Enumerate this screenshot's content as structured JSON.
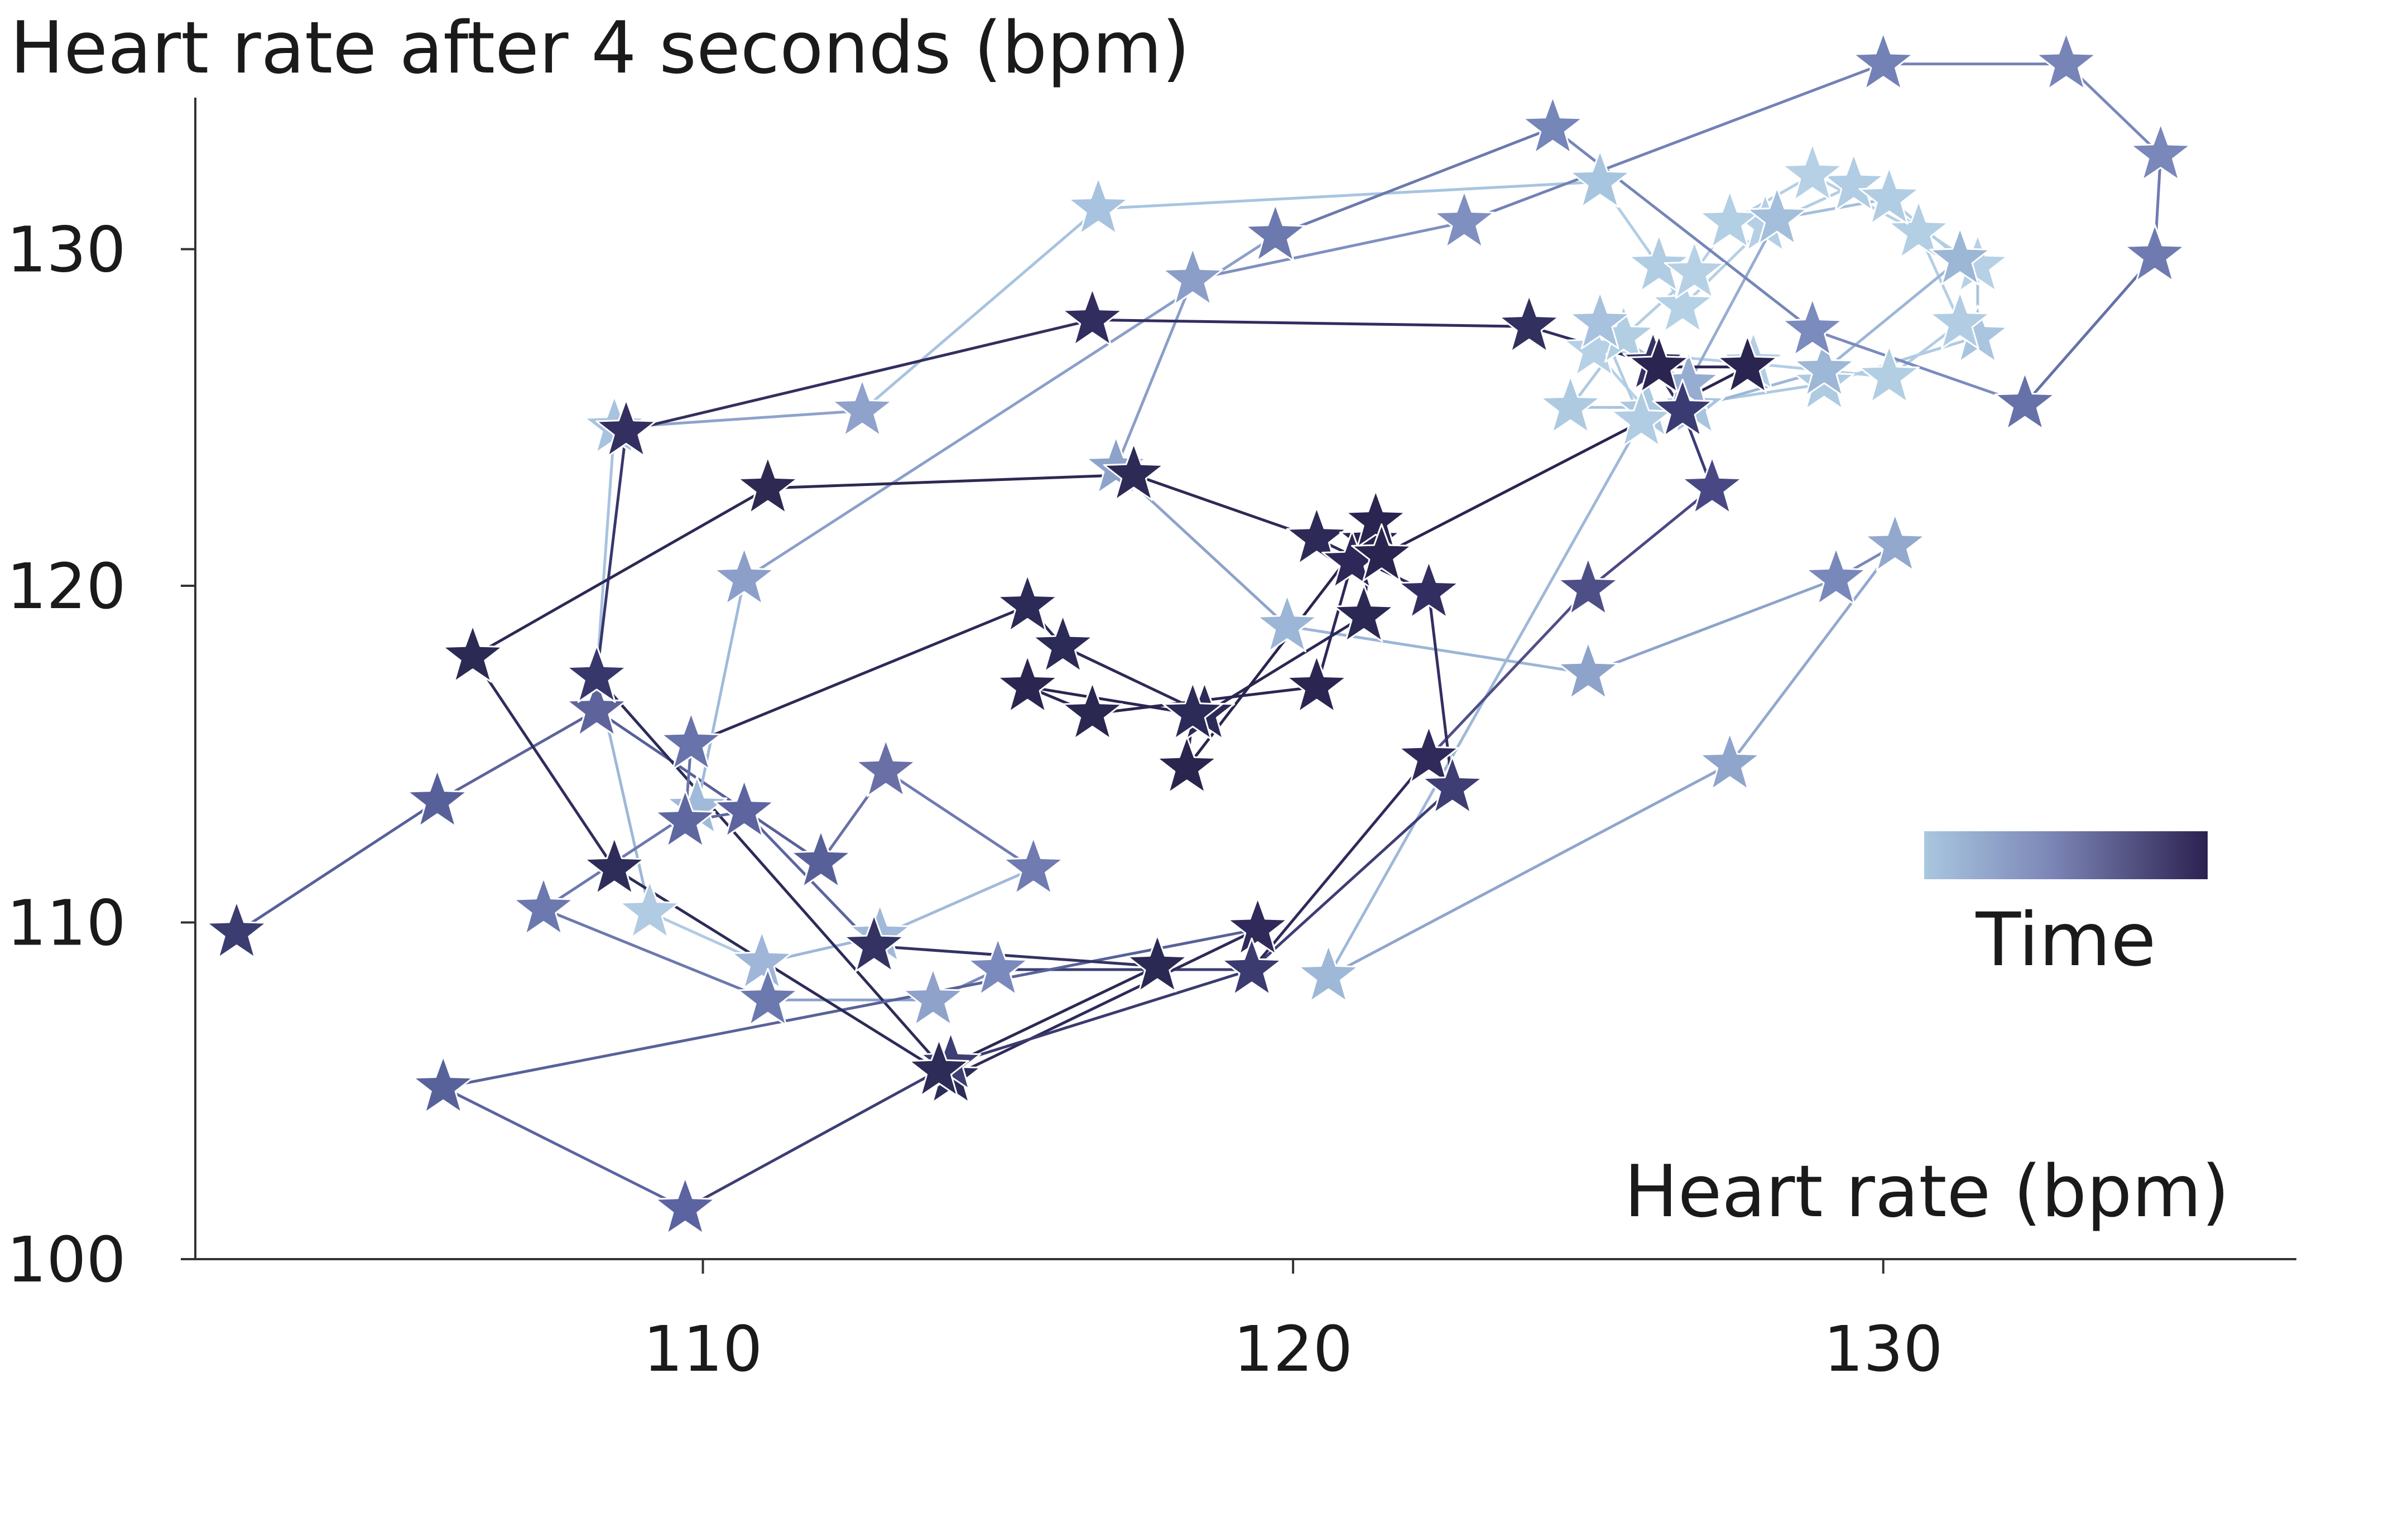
{
  "chart_data": {
    "type": "scatter",
    "title": "Heart rate after 4 seconds (bpm)",
    "xlabel": "Heart rate (bpm)",
    "ylabel": "Heart rate after 4 seconds (bpm)",
    "xlim": [
      101.4,
      137.0
    ],
    "ylim": [
      100,
      134.5
    ],
    "xticks": [
      "110",
      "120",
      "130"
    ],
    "xtick_values": [
      110,
      120,
      130
    ],
    "yticks": [
      "100",
      "110",
      "120",
      "130"
    ],
    "ytick_values": [
      100,
      110,
      120,
      130
    ],
    "marker": "star",
    "connected": true,
    "color_encoding": "time",
    "colormap": [
      "#a9c7df",
      "#8ea3cb",
      "#6f78ad",
      "#4f4f88",
      "#2c2150"
    ],
    "legend": {
      "label": "Time",
      "placement": "right-middle"
    },
    "points": [
      [
        102.1,
        109.7
      ],
      [
        105.5,
        113.6
      ],
      [
        108.2,
        116.3
      ],
      [
        112.0,
        111.8
      ],
      [
        113.1,
        114.5
      ],
      [
        115.6,
        111.6
      ],
      [
        113.0,
        109.6
      ],
      [
        111.0,
        108.8
      ],
      [
        109.1,
        110.3
      ],
      [
        108.2,
        117.3
      ],
      [
        108.5,
        124.7
      ],
      [
        112.7,
        125.2
      ],
      [
        116.7,
        131.2
      ],
      [
        125.2,
        132.0
      ],
      [
        126.2,
        129.5
      ],
      [
        126.6,
        128.3
      ],
      [
        128.0,
        130.7
      ],
      [
        129.5,
        131.9
      ],
      [
        131.6,
        129.5
      ],
      [
        131.6,
        127.4
      ],
      [
        129.0,
        126.0
      ],
      [
        126.0,
        125.2
      ],
      [
        125.1,
        127.0
      ],
      [
        127.8,
        126.6
      ],
      [
        130.1,
        126.2
      ],
      [
        131.3,
        127.8
      ],
      [
        130.6,
        130.5
      ],
      [
        128.8,
        132.2
      ],
      [
        127.4,
        130.8
      ],
      [
        126.8,
        129.3
      ],
      [
        125.6,
        127.4
      ],
      [
        124.7,
        125.3
      ],
      [
        126.8,
        125.3
      ],
      [
        129.0,
        126.4
      ],
      [
        131.3,
        129.7
      ],
      [
        130.1,
        131.5
      ],
      [
        128.2,
        130.9
      ],
      [
        126.7,
        126.0
      ],
      [
        125.2,
        127.8
      ],
      [
        125.9,
        124.9
      ],
      [
        120.6,
        108.4
      ],
      [
        127.4,
        114.7
      ],
      [
        130.2,
        121.2
      ],
      [
        129.2,
        120.2
      ],
      [
        125.0,
        117.4
      ],
      [
        119.9,
        118.8
      ],
      [
        117.0,
        123.5
      ],
      [
        118.3,
        129.1
      ],
      [
        122.9,
        130.8
      ],
      [
        130.0,
        135.5
      ],
      [
        133.1,
        135.5
      ],
      [
        134.7,
        132.8
      ],
      [
        134.6,
        129.8
      ],
      [
        132.4,
        125.4
      ],
      [
        128.8,
        127.6
      ],
      [
        124.4,
        133.6
      ],
      [
        119.7,
        130.4
      ],
      [
        110.7,
        120.2
      ],
      [
        109.9,
        113.4
      ],
      [
        107.3,
        110.4
      ],
      [
        111.1,
        107.7
      ],
      [
        113.9,
        107.7
      ],
      [
        115.0,
        108.6
      ],
      [
        119.3,
        108.6
      ],
      [
        122.3,
        114.9
      ],
      [
        125.0,
        119.9
      ],
      [
        127.1,
        122.9
      ],
      [
        126.6,
        125.2
      ],
      [
        126.1,
        126.6
      ],
      [
        124.0,
        127.7
      ],
      [
        116.6,
        127.9
      ],
      [
        108.7,
        124.6
      ],
      [
        108.2,
        117.3
      ],
      [
        114.2,
        105.4
      ],
      [
        119.4,
        109.8
      ],
      [
        105.6,
        105.1
      ],
      [
        109.7,
        101.5
      ],
      [
        114.2,
        105.8
      ],
      [
        119.3,
        108.6
      ],
      [
        122.7,
        114.0
      ],
      [
        122.3,
        119.8
      ],
      [
        120.4,
        121.4
      ],
      [
        117.3,
        123.3
      ],
      [
        111.1,
        122.9
      ],
      [
        106.1,
        117.9
      ],
      [
        108.5,
        111.6
      ],
      [
        114.0,
        105.6
      ],
      [
        117.7,
        108.7
      ],
      [
        112.9,
        109.3
      ],
      [
        110.7,
        113.3
      ],
      [
        109.7,
        113.0
      ],
      [
        109.8,
        115.3
      ],
      [
        115.5,
        119.4
      ],
      [
        116.1,
        118.2
      ],
      [
        118.5,
        116.2
      ],
      [
        121.2,
        119.1
      ],
      [
        121.3,
        121.3
      ],
      [
        121.4,
        121.9
      ],
      [
        118.2,
        114.6
      ],
      [
        118.3,
        116.2
      ],
      [
        115.5,
        117.0
      ],
      [
        116.6,
        116.2
      ],
      [
        120.4,
        117.0
      ],
      [
        121.0,
        120.7
      ],
      [
        121.5,
        120.9
      ],
      [
        127.7,
        126.5
      ],
      [
        126.2,
        126.5
      ]
    ]
  },
  "point_colors": [
    "#3b3c70",
    "#58609a",
    "#5e639b",
    "#586099",
    "#6a70a6",
    "#6f7bb1",
    "#a1bad9",
    "#9fb6d8",
    "#b1cbe2",
    "#9eb8d6",
    "#a8c3df",
    "#8fa2cb",
    "#a7c3df",
    "#a7c5df",
    "#b1cde3",
    "#b5d1e5",
    "#b5d0e4",
    "#b1cde3",
    "#b6d1e5",
    "#a9c5e0",
    "#aecbe2",
    "#adc9e1",
    "#b6d1e5",
    "#b4cfe4",
    "#b2cee3",
    "#b2cde3",
    "#b3cfe4",
    "#b6d1e5",
    "#b3cfe4",
    "#b6d1e5",
    "#b2cee3",
    "#aecae1",
    "#a8c4df",
    "#9db7d6",
    "#9cb6d6",
    "#b1cde3",
    "#a4bfdc",
    "#97acd1",
    "#a7c2de",
    "#b1cde3",
    "#9eb8d7",
    "#8fa5cc",
    "#92a9cd",
    "#7988bb",
    "#8da3ca",
    "#9bb6d6",
    "#8da3ca",
    "#8b9ec8",
    "#7f8fc0",
    "#7381b6",
    "#7684b8",
    "#7987bb",
    "#6f7bb0",
    "#6571a8",
    "#7b8bbe",
    "#7586b8",
    "#6c79ae",
    "#8b9fc9",
    "#a0bbd9",
    "#6c79af",
    "#6c79ae",
    "#8ea2ca",
    "#7b8abd",
    "#3b3e71",
    "#2f2a5a",
    "#4f4f88",
    "#4a4884",
    "#3b3b74",
    "#343263",
    "#32305f",
    "#322d5f",
    "#332f60",
    "#38376c",
    "#2c2c58",
    "#2f2a5a",
    "#58629a",
    "#5b64a1",
    "#3d3e73",
    "#3b3b70",
    "#3e3e75",
    "#332e61",
    "#2e2a58",
    "#2d2a56",
    "#2d2952",
    "#2b2a55",
    "#2e2d5a",
    "#2d2b57",
    "#2a2954",
    "#333262",
    "#5d64a0",
    "#5e679f",
    "#6873ab",
    "#2c2a57",
    "#2c2a56",
    "#2c2a57",
    "#2b2853",
    "#2a2450",
    "#292550",
    "#2a254f",
    "#2c2a57",
    "#2b2551",
    "#2a2751",
    "#2b2552",
    "#2d2858",
    "#2a2450",
    "#2a2450",
    "#2a2450"
  ]
}
